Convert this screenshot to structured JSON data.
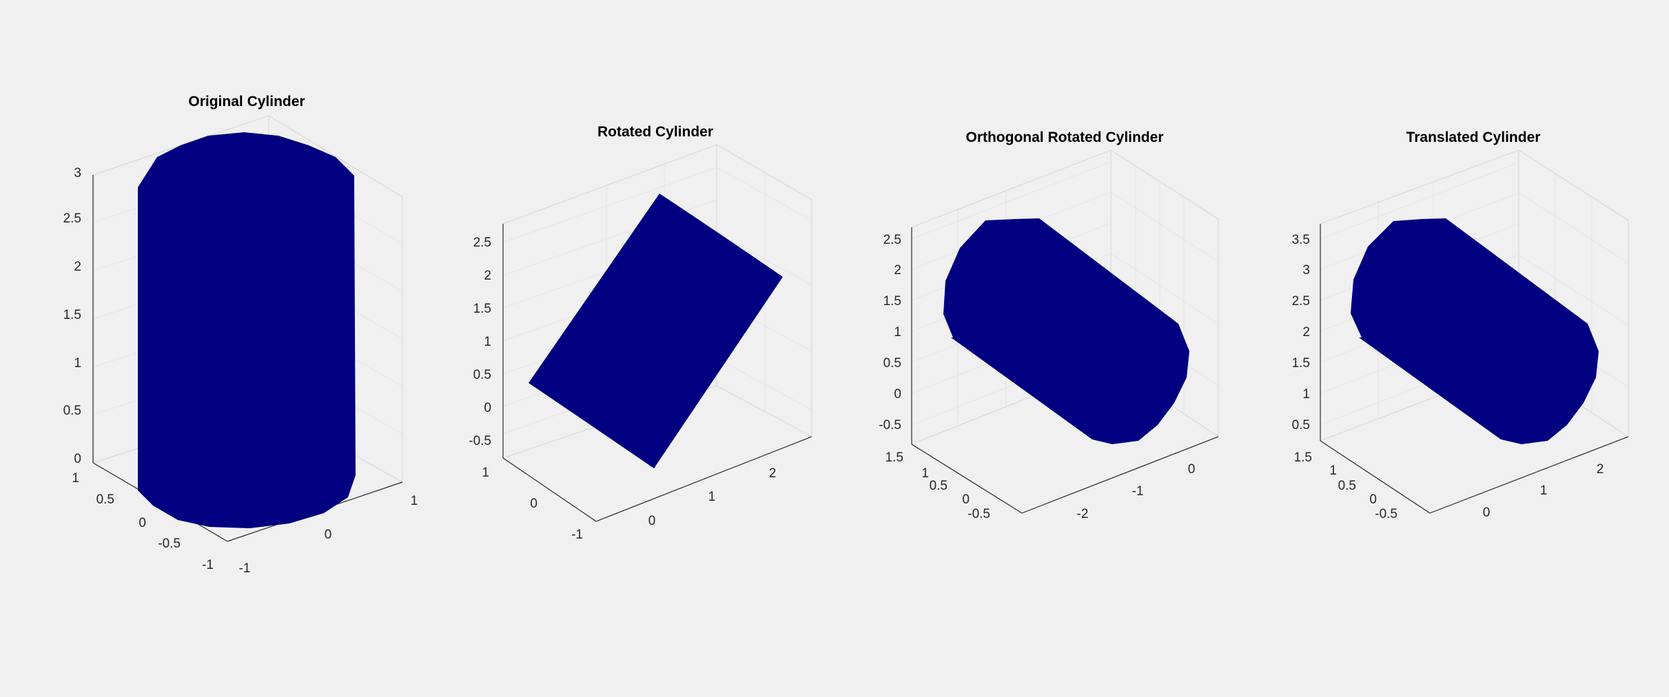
{
  "figure": {
    "background": "#f0f0f0",
    "surface_color": "#000080"
  },
  "chart_data": [
    {
      "type": "surface3d",
      "title": "Original Cylinder",
      "shape": "upright cylinder",
      "surface_color": "#000080",
      "x_ticks": [
        "-1",
        "0",
        "1"
      ],
      "y_ticks": [
        "-1",
        "-0.5",
        "0",
        "0.5",
        "1"
      ],
      "z_ticks": [
        "0",
        "0.5",
        "1",
        "1.5",
        "2",
        "2.5",
        "3"
      ],
      "grid": true
    },
    {
      "type": "surface3d",
      "title": "Rotated Cylinder",
      "shape": "tilted cylinder",
      "surface_color": "#000080",
      "x_ticks": [
        "0",
        "1",
        "2"
      ],
      "y_ticks": [
        "-1",
        "0",
        "1"
      ],
      "z_ticks": [
        "-0.5",
        "0",
        "0.5",
        "1",
        "1.5",
        "2",
        "2.5"
      ],
      "grid": true
    },
    {
      "type": "surface3d",
      "title": "Orthogonal Rotated Cylinder",
      "shape": "cylinder lying along x",
      "surface_color": "#000080",
      "x_ticks": [
        "-2",
        "-1",
        "0"
      ],
      "y_ticks": [
        "-0.5",
        "0",
        "0.5",
        "1",
        "1.5"
      ],
      "z_ticks": [
        "-0.5",
        "0",
        "0.5",
        "1",
        "1.5",
        "2",
        "2.5"
      ],
      "grid": true
    },
    {
      "type": "surface3d",
      "title": "Translated Cylinder",
      "shape": "cylinder lying along x",
      "surface_color": "#000080",
      "x_ticks": [
        "0",
        "1",
        "2"
      ],
      "y_ticks": [
        "-0.5",
        "0",
        "0.5",
        "1",
        "1.5"
      ],
      "z_ticks": [
        "0.5",
        "1",
        "1.5",
        "2",
        "2.5",
        "3",
        "3.5"
      ],
      "grid": true
    }
  ]
}
